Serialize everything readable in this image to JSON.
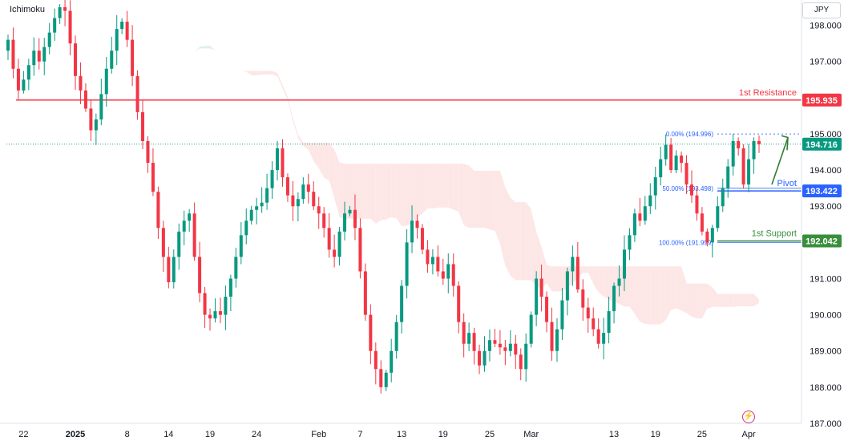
{
  "header": {
    "indicator": "Ichimoku",
    "currency": "JPY"
  },
  "chart_data": {
    "type": "candlestick",
    "ylim": [
      187.0,
      198.7
    ],
    "y_ticks": [
      "198.000",
      "197.000",
      "196.000",
      "195.000",
      "194.000",
      "193.000",
      "192.000",
      "191.000",
      "190.000",
      "189.000",
      "188.000",
      "187.000"
    ],
    "y_tick_values": [
      198,
      197,
      196,
      195,
      194,
      193,
      192,
      191,
      190,
      189,
      188,
      187
    ],
    "x_ticks": [
      {
        "label": "22",
        "i": 3,
        "bold": false
      },
      {
        "label": "2025",
        "i": 13,
        "bold": true
      },
      {
        "label": "8",
        "i": 23,
        "bold": false
      },
      {
        "label": "14",
        "i": 31,
        "bold": false
      },
      {
        "label": "19",
        "i": 39,
        "bold": false
      },
      {
        "label": "24",
        "i": 48,
        "bold": false
      },
      {
        "label": "Feb",
        "i": 60,
        "bold": false
      },
      {
        "label": "7",
        "i": 68,
        "bold": false
      },
      {
        "label": "13",
        "i": 76,
        "bold": false
      },
      {
        "label": "19",
        "i": 84,
        "bold": false
      },
      {
        "label": "25",
        "i": 93,
        "bold": false
      },
      {
        "label": "Mar",
        "i": 101,
        "bold": false
      },
      {
        "label": "13",
        "i": 117,
        "bold": false
      },
      {
        "label": "19",
        "i": 125,
        "bold": false
      },
      {
        "label": "25",
        "i": 134,
        "bold": false
      },
      {
        "label": "Apr",
        "i": 143,
        "bold": false
      }
    ],
    "bar_count": 146,
    "close": [
      197.6,
      196.8,
      196.2,
      196.5,
      196.9,
      197.3,
      197.0,
      197.4,
      197.8,
      198.2,
      198.5,
      198.4,
      197.5,
      196.6,
      196.2,
      195.7,
      195.1,
      195.4,
      196.1,
      196.8,
      197.3,
      197.9,
      198.1,
      197.6,
      196.6,
      195.6,
      194.8,
      194.2,
      193.4,
      192.4,
      191.6,
      190.9,
      191.6,
      192.3,
      192.6,
      192.8,
      191.6,
      190.6,
      190.0,
      189.9,
      190.1,
      190.0,
      190.5,
      191.0,
      191.6,
      192.2,
      192.6,
      192.9,
      193.0,
      193.1,
      193.5,
      194.0,
      194.6,
      193.8,
      193.3,
      193.0,
      193.2,
      193.6,
      193.4,
      193.0,
      192.8,
      192.4,
      191.8,
      191.6,
      192.3,
      192.8,
      192.9,
      192.4,
      191.2,
      190.0,
      189.0,
      188.5,
      188.0,
      188.4,
      189.0,
      189.8,
      190.8,
      192.0,
      192.6,
      192.4,
      191.8,
      191.4,
      191.6,
      191.2,
      191.0,
      191.4,
      190.8,
      189.8,
      189.2,
      189.5,
      189.0,
      188.6,
      189.0,
      189.3,
      189.2,
      189.1,
      189.0,
      189.2,
      188.9,
      188.5,
      189.2,
      190.0,
      191.0,
      190.5,
      189.8,
      189.0,
      189.6,
      190.4,
      191.2,
      191.6,
      190.7,
      190.2,
      189.9,
      189.6,
      189.2,
      189.5,
      190.1,
      190.8,
      191.0,
      191.8,
      192.2,
      192.8,
      192.6,
      193.0,
      193.3,
      193.8,
      194.3,
      194.7,
      194.0,
      194.4,
      194.2,
      193.6,
      193.3,
      192.8,
      192.3,
      192.0,
      192.4,
      193.0,
      193.5,
      194.1,
      194.8,
      194.6,
      193.6,
      194.3,
      194.8,
      194.716
    ],
    "current_price": 194.716,
    "horizontal_levels": [
      {
        "name": "1st Resistance",
        "value": 195.935,
        "value_label": "195.935",
        "color": "#f23645"
      },
      {
        "name": "Pivot",
        "value": 193.422,
        "value_label": "193.422",
        "color": "#2962ff"
      },
      {
        "name": "1st Support",
        "value": 192.042,
        "value_label": "192.042",
        "color": "#388e3c"
      }
    ],
    "current_label": "194.716",
    "current_color": "#089981",
    "fib_levels": [
      {
        "label": "0.00% (194.996)",
        "value": 194.996
      },
      {
        "label": "50.00% (193.498)",
        "value": 193.498
      },
      {
        "label": "100.00% (191.999)",
        "value": 191.999
      }
    ],
    "colors": {
      "up": "#089981",
      "down": "#f23645",
      "cloud_up": "#dff1e2",
      "cloud_down": "#fde6e6",
      "fib": "#2962ff"
    }
  }
}
